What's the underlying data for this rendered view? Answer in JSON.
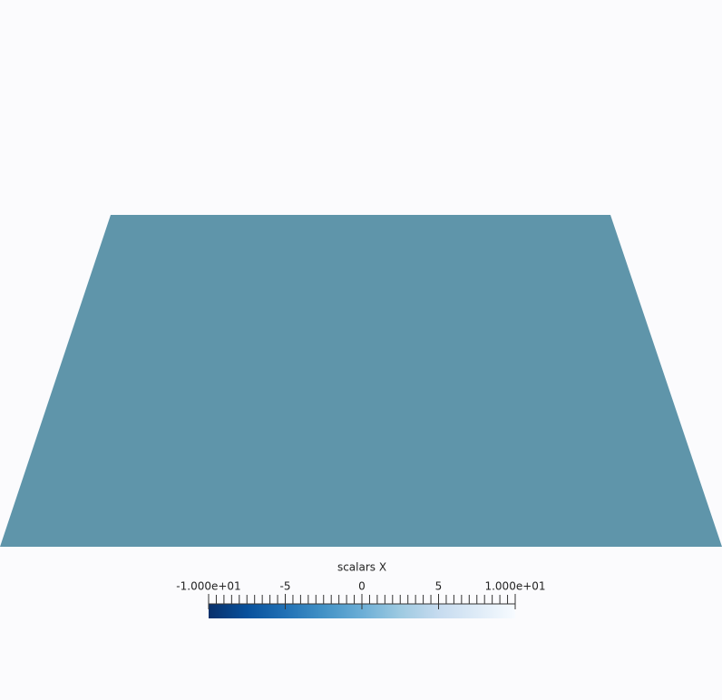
{
  "colorbar": {
    "title": "scalars X",
    "range": [
      -10,
      10
    ],
    "ticks": [
      {
        "value": -10,
        "label": "-1.000e+01"
      },
      -5,
      0,
      5,
      {
        "value": 10,
        "label": "1.000e+01"
      }
    ],
    "minor_ticks": [
      -10,
      -9.5,
      -9,
      -8.5,
      -8,
      -7.5,
      -7,
      -6.5,
      -6,
      -5.5,
      -5,
      -4.5,
      -4,
      -3.5,
      -3,
      -2.5,
      -2,
      -1.5,
      -1,
      -0.5,
      0,
      0.5,
      1,
      1.5,
      2,
      2.5,
      3,
      3.5,
      4,
      4.5,
      5,
      5.5,
      6,
      6.5,
      7,
      7.5,
      8,
      8.5,
      9,
      9.5,
      10
    ],
    "colormap": [
      "#08306b",
      "#08519c",
      "#2171b5",
      "#4292c6",
      "#6baed6",
      "#9ecae1",
      "#c6dbef",
      "#deebf7",
      "#f7fbff"
    ]
  }
}
